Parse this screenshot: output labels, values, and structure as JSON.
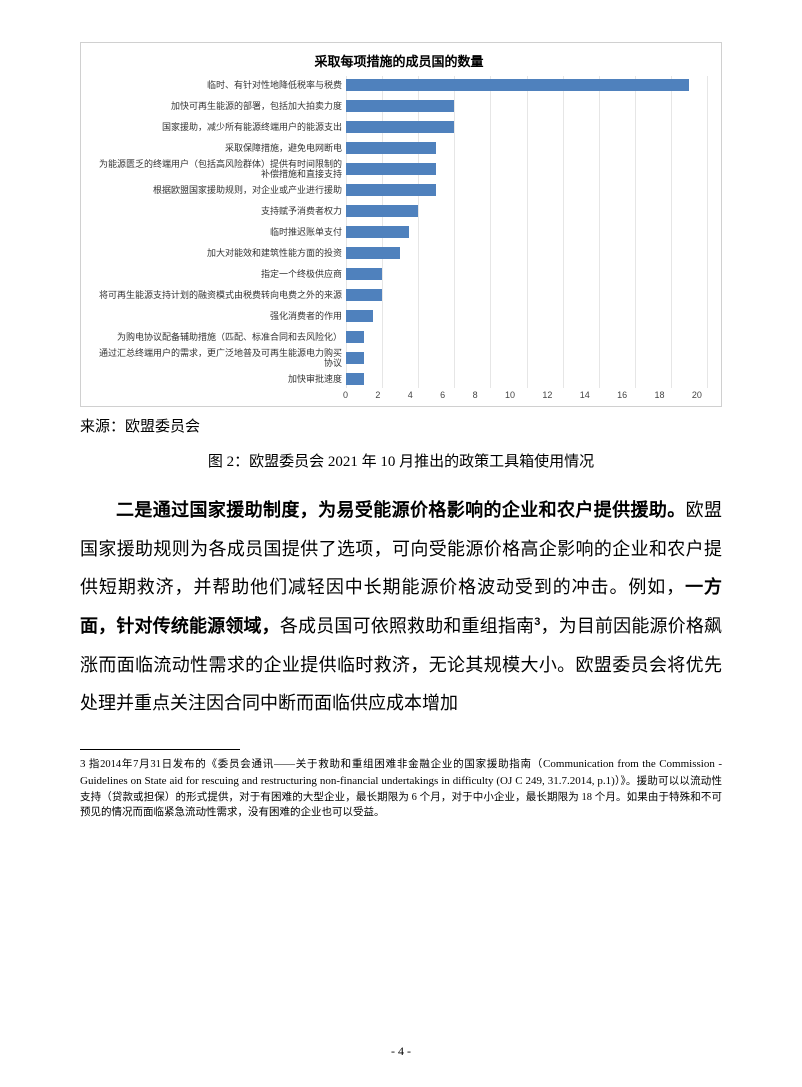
{
  "chart": {
    "title": "采取每项措施的成员国的数量",
    "bar_color": "#4f81bd",
    "grid_color": "#e6e6e6",
    "xmax": 20,
    "xtick_step": 2,
    "ticks": [
      "0",
      "2",
      "4",
      "6",
      "8",
      "10",
      "12",
      "14",
      "16",
      "18",
      "20"
    ],
    "items": [
      {
        "label": "临时、有针对性地降低税率与税费",
        "value": 19
      },
      {
        "label": "加快可再生能源的部署，包括加大拍卖力度",
        "value": 6
      },
      {
        "label": "国家援助，减少所有能源终端用户的能源支出",
        "value": 6
      },
      {
        "label": "采取保障措施，避免电网断电",
        "value": 5
      },
      {
        "label": "为能源匮乏的终端用户（包括高风险群体）提供有时间限制的补偿措施和直接支持",
        "value": 5
      },
      {
        "label": "根据欧盟国家援助规则，对企业或产业进行援助",
        "value": 5
      },
      {
        "label": "支持赋予消费者权力",
        "value": 4
      },
      {
        "label": "临时推迟账单支付",
        "value": 3.5
      },
      {
        "label": "加大对能效和建筑性能方面的投资",
        "value": 3
      },
      {
        "label": "指定一个终极供应商",
        "value": 2
      },
      {
        "label": "将可再生能源支持计划的融资模式由税费转向电费之外的来源",
        "value": 2
      },
      {
        "label": "强化消费者的作用",
        "value": 1.5
      },
      {
        "label": "为购电协议配备辅助措施（匹配、标准合同和去风险化）",
        "value": 1
      },
      {
        "label": "通过汇总终端用户的需求，更广泛地普及可再生能源电力购买协议",
        "value": 1
      },
      {
        "label": "加快审批速度",
        "value": 1
      }
    ]
  },
  "source_label": "来源：欧盟委员会",
  "figure_caption": "图 2：欧盟委员会 2021 年 10 月推出的政策工具箱使用情况",
  "body": {
    "lead_bold": "二是通过国家援助制度，为易受能源价格影响的企业和农户提供援助。",
    "p1": "欧盟国家援助规则为各成员国提供了选项，可向受能源价格高企影响的企业和农户提供短期救济，并帮助他们减轻因中长期能源价格波动受到的冲击。例如，",
    "bold2a": "一方面，",
    "bold2b": "针对传统能源领域，",
    "p2": "各成员国可依照救助和重组指南",
    "fn_mark": "3",
    "p3": "，为目前因能源价格飙涨而面临流动性需求的企业提供临时救济，无论其规模大小。欧盟委员会将优先处理并重点关注因合同中断而面临供应成本增加"
  },
  "footnote": {
    "mark": "3",
    "cn1": " 指2014年7月31日发布的《委员会通讯——关于救助和重组困难非金融企业的国家援助指南（",
    "en": "Communication from the Commission - Guidelines on State aid for rescuing and restructuring non-financial undertakings in difficulty (OJ C 249, 31.7.2014, p.1)",
    "cn2": "）》。援助可以以流动性支持（贷款或担保）的形式提供，对于有困难的大型企业，最长期限为 6 个月，对于中小企业，最长期限为 18 个月。如果由于特殊和不可预见的情况而面临紧急流动性需求，没有困难的企业也可以受益。"
  },
  "page_number": "- 4 -"
}
